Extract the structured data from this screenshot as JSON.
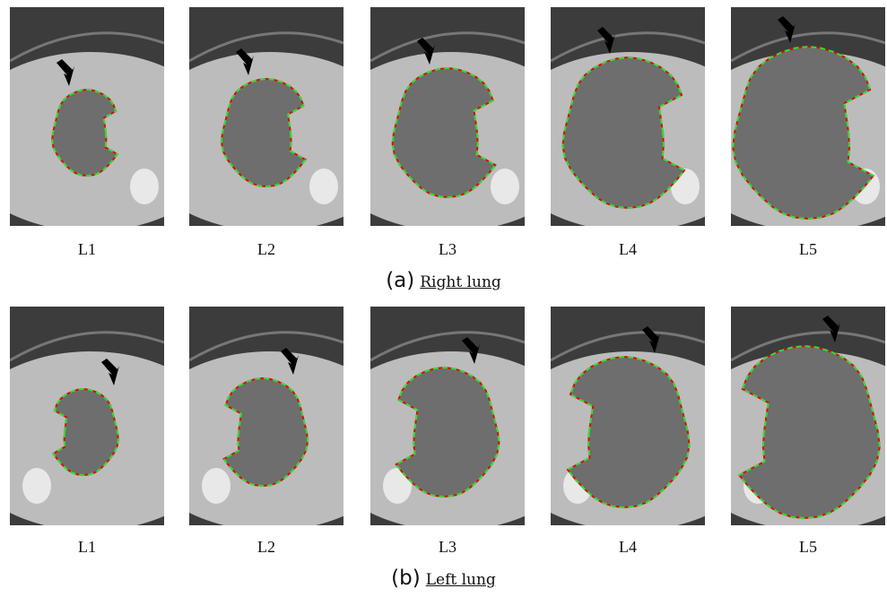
{
  "rows": [
    {
      "panels": [
        {
          "label": "L1"
        },
        {
          "label": "L2"
        },
        {
          "label": "L3"
        },
        {
          "label": "L4"
        },
        {
          "label": "L5"
        }
      ],
      "caption": {
        "prefix": "(a)",
        "text": "Right lung"
      }
    },
    {
      "panels": [
        {
          "label": "L1"
        },
        {
          "label": "L2"
        },
        {
          "label": "L3"
        },
        {
          "label": "L4"
        },
        {
          "label": "L5"
        }
      ],
      "caption": {
        "prefix": "(b)",
        "text": "Left lung"
      }
    }
  ]
}
